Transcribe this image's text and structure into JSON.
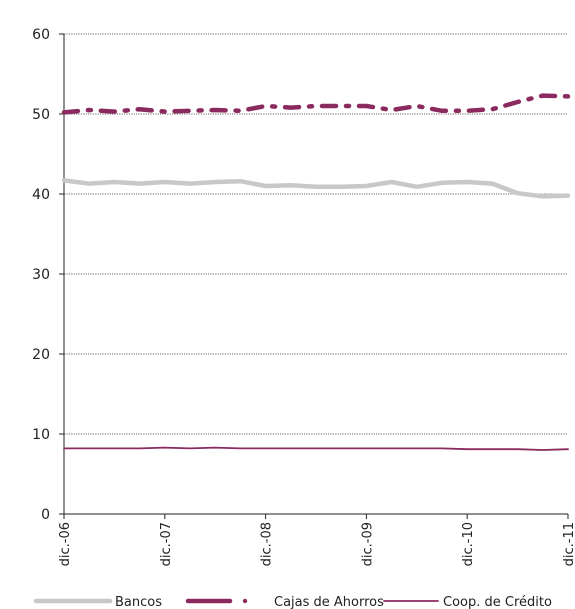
{
  "chart_data": {
    "type": "line",
    "title": "",
    "xlabel": "",
    "ylabel": "",
    "ylim": [
      0,
      60
    ],
    "yticks": [
      "0",
      "10",
      "20",
      "30",
      "40",
      "50",
      "60"
    ],
    "grid": true,
    "legend_position": "bottom",
    "x_tick_labels": [
      "dic.-06",
      "dic.-07",
      "dic.-08",
      "dic.-09",
      "dic.-10",
      "dic.-11"
    ],
    "n_points": 21,
    "series": [
      {
        "name": "Bancos",
        "color": "#c8c8c8",
        "style": "solid-thick",
        "values": [
          41.7,
          41.3,
          41.5,
          41.3,
          41.5,
          41.3,
          41.5,
          41.6,
          41.0,
          41.1,
          40.9,
          40.9,
          41.0,
          41.5,
          40.9,
          41.4,
          41.5,
          41.3,
          40.1,
          39.7,
          39.8
        ]
      },
      {
        "name": "Cajas de Ahorros",
        "color": "#8b2a5e",
        "style": "dash-dot",
        "values": [
          50.2,
          50.5,
          50.3,
          50.6,
          50.3,
          50.4,
          50.5,
          50.4,
          51.0,
          50.8,
          51.0,
          51.0,
          51.0,
          50.5,
          51.0,
          50.4,
          50.4,
          50.6,
          51.5,
          52.3,
          52.2
        ]
      },
      {
        "name": "Coop. de Crédito",
        "color": "#8b2a5e",
        "style": "solid-thin",
        "values": [
          8.2,
          8.2,
          8.2,
          8.2,
          8.3,
          8.2,
          8.3,
          8.2,
          8.2,
          8.2,
          8.2,
          8.2,
          8.2,
          8.2,
          8.2,
          8.2,
          8.1,
          8.1,
          8.1,
          8.0,
          8.1
        ]
      }
    ]
  }
}
